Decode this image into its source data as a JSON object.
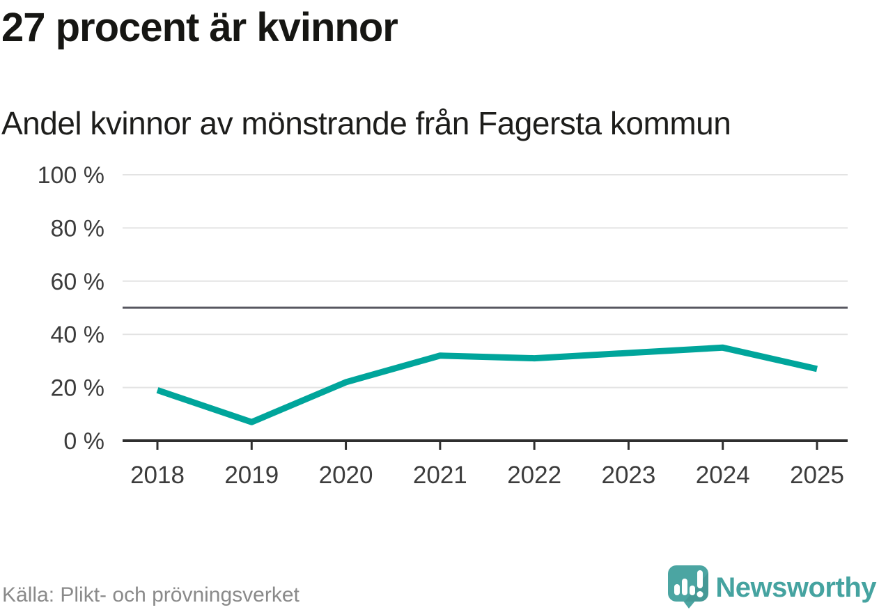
{
  "header": {
    "title": "27 procent är kvinnor",
    "subtitle": "Andel kvinnor av mönstrande från Fagersta kommun"
  },
  "footer": {
    "source": "Källa: Plikt- och prövningsverket",
    "brand": "Newsworthy",
    "logo_icon": "newsworthy-speech-bubble-chart-icon"
  },
  "colors": {
    "title_text": "#161613",
    "line": "#00a59b",
    "reference_line": "#575760",
    "grid": "#e3e3e3",
    "axis": "#2f2f2f",
    "tick_label": "#3c3c3c",
    "source_text": "#8a8a8a",
    "brand_teal": "#45a3a0",
    "logo_bubble": "#4ba5a2"
  },
  "chart_data": {
    "type": "line",
    "title": "27 procent är kvinnor",
    "subtitle": "Andel kvinnor av mönstrande från Fagersta kommun",
    "source": "Källa: Plikt- och prövningsverket",
    "series_name": "Andel kvinnor av mönstrande",
    "x": [
      2018,
      2019,
      2020,
      2021,
      2022,
      2023,
      2024,
      2025
    ],
    "values": [
      19,
      7,
      22,
      32,
      31,
      33,
      35,
      27
    ],
    "unit": "%",
    "ylim": [
      0,
      100
    ],
    "yticks": [
      0,
      20,
      40,
      60,
      80,
      100
    ],
    "ytick_suffix": " %",
    "reference_line": 50,
    "grid": true,
    "legend": "none",
    "xlabel": "",
    "ylabel": ""
  }
}
